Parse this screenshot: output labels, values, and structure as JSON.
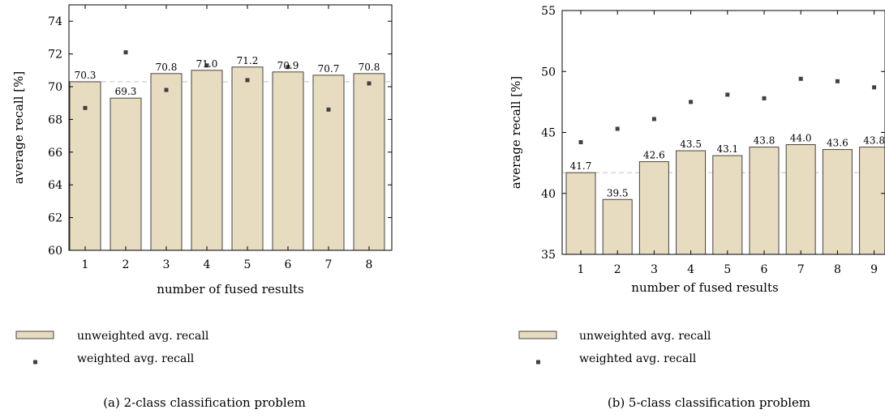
{
  "chart_data": [
    {
      "type": "bar",
      "caption": "(a) 2-class classification problem",
      "xlabel": "number of fused results",
      "ylabel": "average recall [%]",
      "ylim": [
        60,
        75
      ],
      "yticks": [
        60,
        62,
        64,
        66,
        68,
        70,
        72,
        74
      ],
      "categories": [
        "1",
        "2",
        "3",
        "4",
        "5",
        "6",
        "7",
        "8"
      ],
      "series": [
        {
          "name": "unweighted avg. recall",
          "kind": "bar",
          "values": [
            70.3,
            69.3,
            70.8,
            71.0,
            71.2,
            70.9,
            70.7,
            70.8
          ],
          "labels": [
            "70.3",
            "69.3",
            "70.8",
            "71.0",
            "71.2",
            "70.9",
            "70.7",
            "70.8"
          ]
        },
        {
          "name": "weighted avg. recall",
          "kind": "point",
          "values": [
            68.7,
            72.1,
            69.8,
            71.3,
            70.4,
            71.2,
            68.6,
            70.2
          ]
        }
      ],
      "reference_line": 70.3,
      "colors": {
        "bar_fill": "#e8dcc0",
        "bar_stroke": "#444444",
        "marker": "#404040",
        "reference": "#c8c8c8"
      }
    },
    {
      "type": "bar",
      "caption": "(b) 5-class classification problem",
      "xlabel": "number of fused results",
      "ylabel": "average recall [%]",
      "ylim": [
        35,
        55
      ],
      "yticks": [
        35,
        40,
        45,
        50,
        55
      ],
      "categories": [
        "1",
        "2",
        "3",
        "4",
        "5",
        "6",
        "7",
        "8",
        "9"
      ],
      "series": [
        {
          "name": "unweighted avg. recall",
          "kind": "bar",
          "values": [
            41.7,
            39.5,
            42.6,
            43.5,
            43.1,
            43.8,
            44.0,
            43.6,
            43.8
          ],
          "labels": [
            "41.7",
            "39.5",
            "42.6",
            "43.5",
            "43.1",
            "43.8",
            "44.0",
            "43.6",
            "43.8"
          ]
        },
        {
          "name": "weighted avg. recall",
          "kind": "point",
          "values": [
            44.2,
            45.3,
            46.1,
            47.5,
            48.1,
            47.8,
            49.4,
            49.2,
            48.7
          ]
        }
      ],
      "reference_line": 41.7,
      "colors": {
        "bar_fill": "#e8dcc0",
        "bar_stroke": "#444444",
        "marker": "#404040",
        "reference": "#c8c8c8"
      }
    }
  ]
}
